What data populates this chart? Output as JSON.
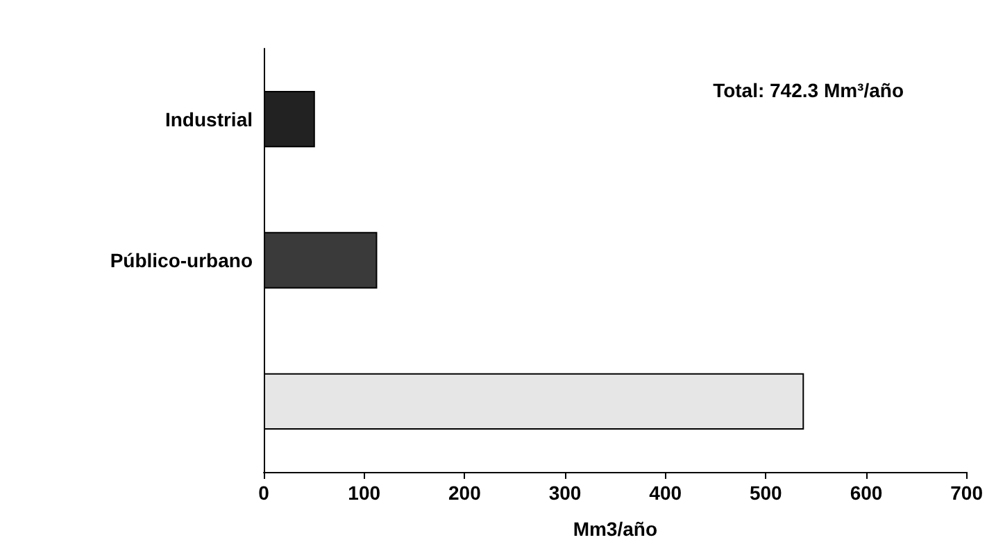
{
  "chart_data": {
    "type": "bar",
    "orientation": "horizontal",
    "categories": [
      "Industrial",
      "Público-urbano",
      null
    ],
    "values": [
      51,
      113,
      538
    ],
    "colors": [
      "#222222",
      "#3a3a3a",
      "#e6e6e6"
    ],
    "xlim": [
      0,
      700
    ],
    "xticks": [
      0,
      100,
      200,
      300,
      400,
      500,
      600,
      700
    ],
    "xlabel": "Mm3/año",
    "annotations": [
      "Total: 742.3 Mm³/año"
    ],
    "grid": false
  }
}
